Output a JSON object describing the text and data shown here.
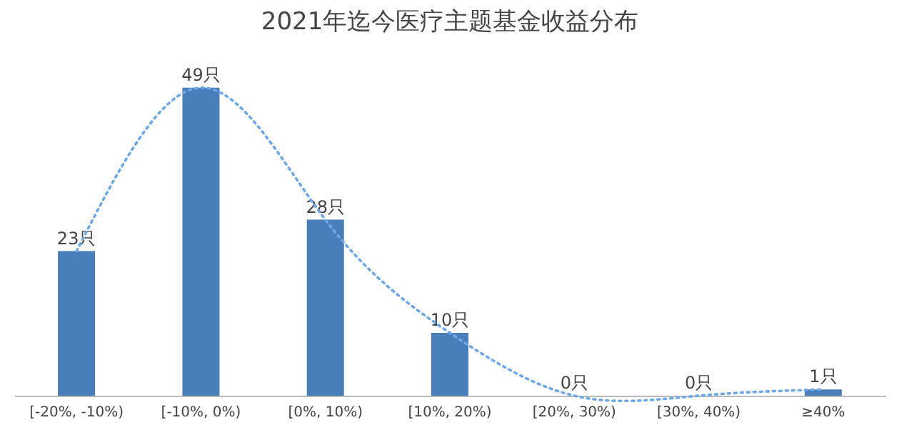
{
  "chart_data": {
    "type": "bar",
    "title": "2021年迄今医疗主题基金收益分布",
    "categories": [
      "[-20%, -10%)",
      "[-10%, 0%)",
      "[0%, 10%)",
      "[10%, 20%)",
      "[20%, 30%)",
      "[30%, 40%)",
      "≥40%"
    ],
    "series": [
      {
        "color": "#4a7ebb",
        "values": [
          23,
          49,
          28,
          10,
          0,
          0,
          1
        ],
        "value_labels": [
          "23只",
          "49只",
          "28只",
          "10只",
          "0只",
          "0只",
          "1只"
        ]
      },
      {
        "type": "line",
        "color": "#6fa8e6",
        "line_style": "dotted",
        "values": [
          23,
          49,
          28,
          10,
          0,
          0,
          1
        ]
      }
    ],
    "tick_labels": "x",
    "grid": false
  }
}
